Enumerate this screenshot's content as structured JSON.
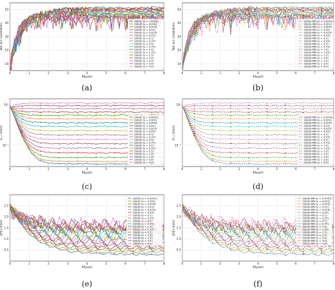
{
  "palette": [
    "#1f77b4",
    "#ff7f0e",
    "#2ca02c",
    "#d62728",
    "#9467bd",
    "#8c564b",
    "#e377c2",
    "#7f7f7f",
    "#bcbd22",
    "#17becf",
    "#1f77b4",
    "#ff7f0e",
    "#2ca02c",
    "#d62728",
    "#9467bd",
    "#8c564b",
    "#e377c2"
  ],
  "chart_data": [
    {
      "panel": "(a)",
      "type": "line",
      "line_style": "solid",
      "xlabel": "#Epoch",
      "ylabel": "Test acc (validation)",
      "xticks": [
        "0",
        "1",
        "2",
        "3",
        "4",
        "5",
        "6",
        "7",
        "8"
      ],
      "yticks": [
        "10",
        "20",
        "30",
        "40",
        "50"
      ],
      "xlim": [
        0,
        8
      ],
      "ylim": [
        5,
        55
      ],
      "legend_position": "right",
      "series": [
        {
          "name": "QSGD (γ = 0.0001)",
          "final": 51.5
        },
        {
          "name": "QSGD (γ = 0.001)",
          "final": 51
        },
        {
          "name": "QSGD (γ = 0.005)",
          "final": 50.5
        },
        {
          "name": "QSGD (γ = 0.01)",
          "final": 50
        },
        {
          "name": "QSGD (γ = 0.025)",
          "final": 49.5
        },
        {
          "name": "QSGD (γ = 0.05)",
          "final": 49
        },
        {
          "name": "QSGD (γ = 0.1)",
          "final": 48.5
        },
        {
          "name": "QSGD (γ = 0.25)",
          "final": 48
        },
        {
          "name": "QSGD (γ = 0.5)",
          "final": 47.5
        },
        {
          "name": "QSGD (γ = 0.75)",
          "final": 47
        },
        {
          "name": "QSGD (γ = 1.0)",
          "final": 46.5
        },
        {
          "name": "QSGD (γ = 1.25)",
          "final": 46
        },
        {
          "name": "QSGD (γ = 1.5)",
          "final": 45.5
        },
        {
          "name": "QSGD (γ = 2.0)",
          "final": 45
        },
        {
          "name": "QSGD (γ = 2.5)",
          "final": 44.5
        },
        {
          "name": "QSGD (γ = 3.0)",
          "final": 44
        },
        {
          "name": "QSGD (γ = 4.0)",
          "final": 43.5
        }
      ]
    },
    {
      "panel": "(b)",
      "type": "line",
      "line_style": "dashed",
      "xlabel": "#Epoch",
      "ylabel": "Test acc (validation)",
      "xticks": [
        "0",
        "1",
        "2",
        "3",
        "4",
        "5",
        "6",
        "7",
        "8"
      ],
      "yticks": [
        "10",
        "20",
        "30",
        "40",
        "50"
      ],
      "xlim": [
        0,
        8
      ],
      "ylim": [
        5,
        55
      ],
      "legend_position": "right",
      "series": [
        {
          "name": "QSGD-MN (γ = 0.0001)",
          "final": 51.5
        },
        {
          "name": "QSGD-MN (γ = 0.001)",
          "final": 51
        },
        {
          "name": "QSGD-MN (γ = 0.005)",
          "final": 50.5
        },
        {
          "name": "QSGD-MN (γ = 0.01)",
          "final": 50
        },
        {
          "name": "QSGD-MN (γ = 0.025)",
          "final": 49.5
        },
        {
          "name": "QSGD-MN (γ = 0.05)",
          "final": 49
        },
        {
          "name": "QSGD-MN (γ = 0.1)",
          "final": 48.5
        },
        {
          "name": "QSGD-MN (γ = 0.25)",
          "final": 48
        },
        {
          "name": "QSGD-MN (γ = 0.5)",
          "final": 47.5
        },
        {
          "name": "QSGD-MN (γ = 0.75)",
          "final": 47
        },
        {
          "name": "QSGD-MN (γ = 1.0)",
          "final": 46.5
        },
        {
          "name": "QSGD-MN (γ = 1.25)",
          "final": 46
        },
        {
          "name": "QSGD-MN (γ = 1.5)",
          "final": 45.5
        },
        {
          "name": "QSGD-MN (γ = 2.0)",
          "final": 45
        },
        {
          "name": "QSGD-MN (γ = 2.5)",
          "final": 44.5
        },
        {
          "name": "QSGD-MN (γ = 3.0)",
          "final": 44
        },
        {
          "name": "QSGD-MN (γ = 4.0)",
          "final": 43.5
        }
      ]
    },
    {
      "panel": "(c)",
      "type": "line",
      "line_style": "solid",
      "log_y": true,
      "xlabel": "#Epoch",
      "ylabel": "Eₜ₊₁ (train)",
      "xticks": [
        "0",
        "1",
        "2",
        "3",
        "4",
        "5",
        "6",
        "7",
        "8"
      ],
      "yticks": [
        "10⁰",
        "10⁻¹"
      ],
      "xlim": [
        0,
        8
      ],
      "ylim": [
        0.03,
        1.4
      ],
      "legend_position": "right",
      "series": [
        {
          "name": "QSGD (γ = 0.0001)",
          "final": 0.035
        },
        {
          "name": "QSGD (γ = 0.001)",
          "final": 0.04
        },
        {
          "name": "QSGD (γ = 0.005)",
          "final": 0.05
        },
        {
          "name": "QSGD (γ = 0.01)",
          "final": 0.065
        },
        {
          "name": "QSGD (γ = 0.025)",
          "final": 0.085
        },
        {
          "name": "QSGD (γ = 0.05)",
          "final": 0.11
        },
        {
          "name": "QSGD (γ = 0.1)",
          "final": 0.14
        },
        {
          "name": "QSGD (γ = 0.25)",
          "final": 0.18
        },
        {
          "name": "QSGD (γ = 0.5)",
          "final": 0.23
        },
        {
          "name": "QSGD (γ = 0.75)",
          "final": 0.29
        },
        {
          "name": "QSGD (γ = 1.0)",
          "final": 0.36
        },
        {
          "name": "QSGD (γ = 1.25)",
          "final": 0.45
        },
        {
          "name": "QSGD (γ = 1.5)",
          "final": 0.55
        },
        {
          "name": "QSGD (γ = 2.0)",
          "final": 0.66
        },
        {
          "name": "QSGD (γ = 2.5)",
          "final": 0.8
        },
        {
          "name": "QSGD (γ = 3.0)",
          "final": 0.95
        },
        {
          "name": "QSGD (γ = 4.0)",
          "final": 1.1
        }
      ]
    },
    {
      "panel": "(d)",
      "type": "line",
      "line_style": "dashed",
      "log_y": true,
      "xlabel": "#Epoch",
      "ylabel": "Eₜ₊₁ (train)",
      "xticks": [
        "0",
        "1",
        "2",
        "3",
        "4",
        "5",
        "6",
        "7",
        "8"
      ],
      "yticks": [
        "10⁰",
        "10⁻¹"
      ],
      "xlim": [
        0,
        8
      ],
      "ylim": [
        0.03,
        1.4
      ],
      "legend_position": "right",
      "series": [
        {
          "name": "QSGD-MN (γ = 0.0001)",
          "final": 0.035
        },
        {
          "name": "QSGD-MN (γ = 0.001)",
          "final": 0.04
        },
        {
          "name": "QSGD-MN (γ = 0.005)",
          "final": 0.05
        },
        {
          "name": "QSGD-MN (γ = 0.01)",
          "final": 0.065
        },
        {
          "name": "QSGD-MN (γ = 0.025)",
          "final": 0.085
        },
        {
          "name": "QSGD-MN (γ = 0.05)",
          "final": 0.11
        },
        {
          "name": "QSGD-MN (γ = 0.1)",
          "final": 0.14
        },
        {
          "name": "QSGD-MN (γ = 0.25)",
          "final": 0.18
        },
        {
          "name": "QSGD-MN (γ = 0.5)",
          "final": 0.23
        },
        {
          "name": "QSGD-MN (γ = 0.75)",
          "final": 0.29
        },
        {
          "name": "QSGD-MN (γ = 1.0)",
          "final": 0.36
        },
        {
          "name": "QSGD-MN (γ = 1.25)",
          "final": 0.45
        },
        {
          "name": "QSGD-MN (γ = 1.5)",
          "final": 0.55
        },
        {
          "name": "QSGD-MN (γ = 2.0)",
          "final": 0.66
        },
        {
          "name": "QSGD-MN (γ = 2.5)",
          "final": 0.8
        },
        {
          "name": "QSGD-MN (γ = 3.0)",
          "final": 0.95
        },
        {
          "name": "QSGD-MN (γ = 4.0)",
          "final": 1.1
        }
      ]
    },
    {
      "panel": "(e)",
      "type": "line",
      "line_style": "solid",
      "xlabel": "#Epoch",
      "ylabel": "||∇f|| (train)",
      "xticks": [
        "0",
        "1",
        "2",
        "3",
        "4",
        "5",
        "6",
        "7",
        "8"
      ],
      "yticks": [
        "0.5",
        "1.0",
        "1.5",
        "2.0",
        "2.5"
      ],
      "xlim": [
        0,
        8
      ],
      "ylim": [
        0,
        3
      ],
      "legend_position": "upper right",
      "series": [
        {
          "name": "QSGD (γ = 0.0001)",
          "final": 0.3
        },
        {
          "name": "QSGD (γ = 0.001)",
          "final": 0.4
        },
        {
          "name": "QSGD (γ = 0.005)",
          "final": 0.5
        },
        {
          "name": "QSGD (γ = 0.01)",
          "final": 0.6
        },
        {
          "name": "QSGD (γ = 0.025)",
          "final": 0.7
        },
        {
          "name": "QSGD (γ = 0.05)",
          "final": 0.8
        },
        {
          "name": "QSGD (γ = 0.1)",
          "final": 0.9
        },
        {
          "name": "QSGD (γ = 0.25)",
          "final": 1.0
        },
        {
          "name": "QSGD (γ = 0.5)",
          "final": 1.1
        },
        {
          "name": "QSGD (γ = 0.75)",
          "final": 1.2
        },
        {
          "name": "QSGD (γ = 1.0)",
          "final": 1.3
        },
        {
          "name": "QSGD (γ = 1.25)",
          "final": 1.4
        },
        {
          "name": "QSGD (γ = 1.5)",
          "final": 1.45
        },
        {
          "name": "QSGD (γ = 2.0)",
          "final": 1.5
        },
        {
          "name": "QSGD (γ = 2.5)",
          "final": 1.55
        },
        {
          "name": "QSGD (γ = 3.0)",
          "final": 1.6
        },
        {
          "name": "QSGD (γ = 4.0)",
          "final": 1.65
        }
      ]
    },
    {
      "panel": "(f)",
      "type": "line",
      "line_style": "dashed",
      "xlabel": "#Epoch",
      "ylabel": "||∇f|| (train)",
      "xticks": [
        "0",
        "1",
        "2",
        "3",
        "4",
        "5",
        "6",
        "7",
        "8"
      ],
      "yticks": [
        "0.5",
        "1.0",
        "1.5",
        "2.0",
        "2.5"
      ],
      "xlim": [
        0,
        8
      ],
      "ylim": [
        0,
        3
      ],
      "legend_position": "upper right",
      "series": [
        {
          "name": "QSGD-MN (γ = 0.0001)",
          "final": 0.3
        },
        {
          "name": "QSGD-MN (γ = 0.001)",
          "final": 0.4
        },
        {
          "name": "QSGD-MN (γ = 0.005)",
          "final": 0.5
        },
        {
          "name": "QSGD-MN (γ = 0.01)",
          "final": 0.6
        },
        {
          "name": "QSGD-MN (γ = 0.025)",
          "final": 0.7
        },
        {
          "name": "QSGD-MN (γ = 0.05)",
          "final": 0.8
        },
        {
          "name": "QSGD-MN (γ = 0.1)",
          "final": 0.9
        },
        {
          "name": "QSGD-MN (γ = 0.25)",
          "final": 1.0
        },
        {
          "name": "QSGD-MN (γ = 0.5)",
          "final": 1.1
        },
        {
          "name": "QSGD-MN (γ = 0.75)",
          "final": 1.2
        },
        {
          "name": "QSGD-MN (γ = 1.0)",
          "final": 1.3
        },
        {
          "name": "QSGD-MN (γ = 1.25)",
          "final": 1.4
        },
        {
          "name": "QSGD-MN (γ = 1.5)",
          "final": 1.45
        },
        {
          "name": "QSGD-MN (γ = 2.0)",
          "final": 1.5
        },
        {
          "name": "QSGD-MN (γ = 2.5)",
          "final": 1.55
        },
        {
          "name": "QSGD-MN (γ = 3.0)",
          "final": 1.6
        },
        {
          "name": "QSGD-MN (γ = 4.0)",
          "final": 1.65
        }
      ]
    }
  ]
}
